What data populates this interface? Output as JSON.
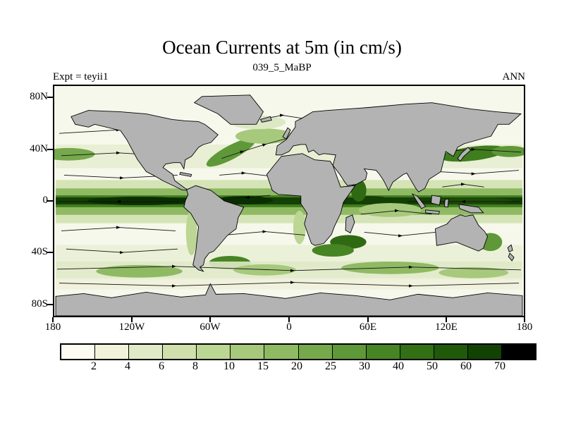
{
  "header": {
    "title": "Ocean Currents at 5m (in cm/s)",
    "subtitle": "039_5_MaBP",
    "expt_label": "Expt = teyii1",
    "season_label": "ANN"
  },
  "axes": {
    "y_ticks": [
      "80N",
      "40N",
      "0",
      "40S",
      "80S"
    ],
    "x_ticks": [
      "180",
      "120W",
      "60W",
      "0",
      "60E",
      "120E",
      "180"
    ]
  },
  "colorbar": {
    "labels": [
      "2",
      "4",
      "6",
      "8",
      "10",
      "15",
      "20",
      "25",
      "30",
      "40",
      "50",
      "60",
      "70"
    ],
    "colors": [
      "#fcfcf2",
      "#f0f2da",
      "#e1e9c6",
      "#cfe0ad",
      "#bcd694",
      "#a6c97c",
      "#8fba63",
      "#76a94c",
      "#5f9838",
      "#478424",
      "#326f15",
      "#20590a",
      "#114204",
      "#000000"
    ]
  },
  "chart_data": {
    "type": "heatmap",
    "title": "Ocean Currents at 5m (in cm/s)",
    "subtitle": "039_5_MaBP",
    "experiment": "teyii1",
    "period": "ANN",
    "variable": "ocean current speed at 5 m depth",
    "units": "cm/s",
    "projection": "equirectangular latitude-longitude world map, 0 longitude at center",
    "x_axis": {
      "label": "longitude",
      "tick_labels": [
        "180",
        "120W",
        "60W",
        "0",
        "60E",
        "120E",
        "180"
      ],
      "range_deg": [
        -180,
        180
      ]
    },
    "y_axis": {
      "label": "latitude",
      "tick_labels": [
        "80N",
        "40N",
        "0",
        "40S",
        "80S"
      ],
      "range_deg": [
        -90,
        90
      ]
    },
    "colorbar": {
      "orientation": "horizontal",
      "boundary_levels": [
        2,
        4,
        6,
        8,
        10,
        15,
        20,
        25,
        30,
        40,
        50,
        60,
        70
      ],
      "colors": [
        "#fcfcf2",
        "#f0f2da",
        "#e1e9c6",
        "#cfe0ad",
        "#bcd694",
        "#a6c97c",
        "#8fba63",
        "#76a94c",
        "#5f9838",
        "#478424",
        "#326f15",
        "#20590a",
        "#114204",
        "#000000"
      ]
    },
    "overlay": "black streamlines with arrowheads showing current direction",
    "land_color": "#b3b3b3",
    "visible_features": [
      "very dark high-speed band (>40 cm/s) along the equator across Pacific, Atlantic and Indian Oceans",
      "western boundary currents (Gulf Stream, Kuroshio, Agulhas, Brazil and East Australian currents) in dark green",
      "moderate green band along the Antarctic Circumpolar Current near 40S-55S",
      "pale (<4 cm/s) subtropical gyre interiors and high-latitude oceans"
    ]
  }
}
